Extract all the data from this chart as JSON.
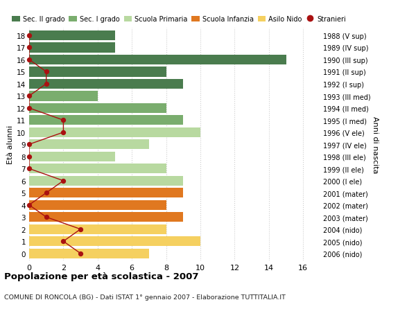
{
  "ages": [
    18,
    17,
    16,
    15,
    14,
    13,
    12,
    11,
    10,
    9,
    8,
    7,
    6,
    5,
    4,
    3,
    2,
    1,
    0
  ],
  "right_labels": [
    "1988 (V sup)",
    "1989 (IV sup)",
    "1990 (III sup)",
    "1991 (II sup)",
    "1992 (I sup)",
    "1993 (III med)",
    "1994 (II med)",
    "1995 (I med)",
    "1996 (V ele)",
    "1997 (IV ele)",
    "1998 (III ele)",
    "1999 (II ele)",
    "2000 (I ele)",
    "2001 (mater)",
    "2002 (mater)",
    "2003 (mater)",
    "2004 (nido)",
    "2005 (nido)",
    "2006 (nido)"
  ],
  "bar_values": [
    5,
    5,
    15,
    8,
    9,
    4,
    8,
    9,
    10,
    7,
    5,
    8,
    9,
    9,
    8,
    9,
    8,
    10,
    7
  ],
  "bar_colors": [
    "#4a7c4e",
    "#4a7c4e",
    "#4a7c4e",
    "#4a7c4e",
    "#4a7c4e",
    "#7aad6e",
    "#7aad6e",
    "#7aad6e",
    "#b8d9a0",
    "#b8d9a0",
    "#b8d9a0",
    "#b8d9a0",
    "#b8d9a0",
    "#e07820",
    "#e07820",
    "#e07820",
    "#f5d060",
    "#f5d060",
    "#f5d060"
  ],
  "stranieri_x": [
    0,
    0,
    0,
    1,
    1,
    0,
    0,
    2,
    2,
    0,
    0,
    0,
    2,
    1,
    0,
    1,
    3,
    2,
    3
  ],
  "stranieri_color": "#aa1111",
  "legend_labels": [
    "Sec. II grado",
    "Sec. I grado",
    "Scuola Primaria",
    "Scuola Infanzia",
    "Asilo Nido",
    "Stranieri"
  ],
  "legend_colors": [
    "#4a7c4e",
    "#7aad6e",
    "#b8d9a0",
    "#e07820",
    "#f5d060",
    "#aa1111"
  ],
  "ylabel_left": "Età alunni",
  "ylabel_right": "Anni di nascita",
  "title": "Popolazione per età scolastica - 2007",
  "subtitle": "COMUNE DI RONCOLA (BG) - Dati ISTAT 1° gennaio 2007 - Elaborazione TUTTITALIA.IT",
  "xlim": [
    0,
    17
  ],
  "bg_color": "#ffffff",
  "grid_color": "#cccccc"
}
